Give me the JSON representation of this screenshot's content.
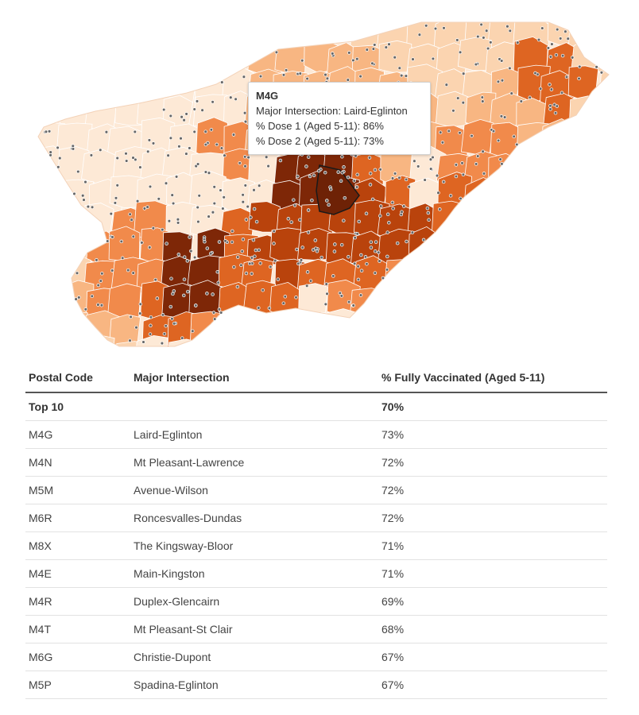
{
  "tooltip": {
    "title": "M4G",
    "intersection_line": "Major Intersection: Laird-Eglinton",
    "dose1_line": "% Dose 1 (Aged 5-11): 86%",
    "dose2_line": "% Dose 2 (Aged 5-11): 73%"
  },
  "map": {
    "highlighted_area": "M4G",
    "colors": {
      "lightest": "#fde9d6",
      "light": "#fbd4b0",
      "mid_light": "#f8b682",
      "mid": "#f18a4b",
      "mid_dark": "#de6522",
      "dark": "#b9430c",
      "darkest": "#7e2707",
      "dot": "#666666",
      "border": "#ffffff"
    }
  },
  "table": {
    "headers": {
      "postal_code": "Postal Code",
      "intersection": "Major Intersection",
      "vaccinated": "% Fully Vaccinated (Aged 5-11)"
    },
    "summary": {
      "label": "Top 10",
      "value": "70%"
    },
    "rows": [
      {
        "code": "M4G",
        "intersection": "Laird-Eglinton",
        "pct": "73%"
      },
      {
        "code": "M4N",
        "intersection": "Mt Pleasant-Lawrence",
        "pct": "72%"
      },
      {
        "code": "M5M",
        "intersection": "Avenue-Wilson",
        "pct": "72%"
      },
      {
        "code": "M6R",
        "intersection": "Roncesvalles-Dundas",
        "pct": "72%"
      },
      {
        "code": "M8X",
        "intersection": "The Kingsway-Bloor",
        "pct": "71%"
      },
      {
        "code": "M4E",
        "intersection": "Main-Kingston",
        "pct": "71%"
      },
      {
        "code": "M4R",
        "intersection": "Duplex-Glencairn",
        "pct": "69%"
      },
      {
        "code": "M4T",
        "intersection": "Mt Pleasant-St Clair",
        "pct": "68%"
      },
      {
        "code": "M6G",
        "intersection": "Christie-Dupont",
        "pct": "67%"
      },
      {
        "code": "M5P",
        "intersection": "Spadina-Eglinton",
        "pct": "67%"
      }
    ]
  }
}
